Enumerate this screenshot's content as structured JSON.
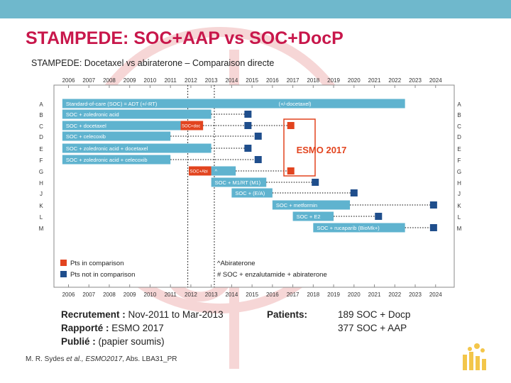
{
  "header": {
    "title": "STAMPEDE: SOC+AAP vs SOC+DocP",
    "subtitle": "STAMPEDE: Docetaxel vs abiraterone – Comparaison directe"
  },
  "chart_data": {
    "type": "gantt",
    "years": [
      "2006",
      "2007",
      "2008",
      "2009",
      "2010",
      "2011",
      "2012",
      "2013",
      "2014",
      "2015",
      "2016",
      "2017",
      "2018",
      "2019",
      "2020",
      "2021",
      "2022",
      "2023",
      "2024"
    ],
    "row_letters": [
      "A",
      "B",
      "C",
      "D",
      "E",
      "F",
      "G",
      "H",
      "J",
      "K",
      "L",
      "M"
    ],
    "arms": [
      {
        "row": "A",
        "label": "Standard-of-care (SOC) = ADT (+/-RT)",
        "start": 2005.7,
        "end": 2022.5,
        "label2": "(+/-docetaxel)"
      },
      {
        "row": "B",
        "label": "SOC + zoledronic acid",
        "start": 2005.7,
        "end": 2013.0,
        "marker": "not",
        "marker_at": 2014.8
      },
      {
        "row": "C",
        "label": "SOC + docetaxel",
        "start": 2005.7,
        "end": 2011.5,
        "highlight": "SOC+doc",
        "hl_start": 2011.5,
        "hl_end": 2012.6,
        "marker": "not",
        "marker_at": 2014.8,
        "marker2": "pts",
        "marker2_at": 2016.9
      },
      {
        "row": "D",
        "label": "SOC + celecoxib",
        "start": 2005.7,
        "end": 2011.0,
        "marker": "not",
        "marker_at": 2015.3
      },
      {
        "row": "E",
        "label": "SOC + zoledronic acid + docetaxel",
        "start": 2005.7,
        "end": 2013.0,
        "marker": "not",
        "marker_at": 2014.8
      },
      {
        "row": "F",
        "label": "SOC + zoledronic acid + celecoxib",
        "start": 2005.7,
        "end": 2011.0,
        "marker": "not",
        "marker_at": 2015.3
      },
      {
        "row": "G",
        "label": "^",
        "start": 2013.0,
        "end": 2014.2,
        "highlight": "SOC+Abi",
        "hl_start": 2011.9,
        "hl_end": 2013.0,
        "marker": "pts",
        "marker_at": 2016.9
      },
      {
        "row": "H",
        "label": "SOC + M1/RT (M1)",
        "start": 2013.0,
        "end": 2015.7,
        "marker": "not",
        "marker_at": 2018.1
      },
      {
        "row": "J",
        "label": "SOC + (E/A)",
        "start": 2014.0,
        "end": 2016.0,
        "marker": "not",
        "marker_at": 2020.0
      },
      {
        "row": "K",
        "label": "SOC + metformin",
        "start": 2016.0,
        "end": 2019.8,
        "marker": "not",
        "marker_at": 2023.9
      },
      {
        "row": "L",
        "label": "SOC + E2",
        "start": 2017.0,
        "end": 2019.0,
        "marker": "not",
        "marker_at": 2021.2
      },
      {
        "row": "M",
        "label": "SOC + rucaparib (BioMk+)",
        "start": 2018.0,
        "end": 2022.5,
        "marker": "not",
        "marker_at": 2023.9
      }
    ],
    "esmo_label": "ESMO 2017",
    "legend": [
      {
        "label": "Pts in comparison",
        "color": "#e2441f"
      },
      {
        "label": "Pts not in comparison",
        "color": "#1f4e8c"
      }
    ],
    "notes": [
      "^Abiraterone",
      "# SOC + enzalutamide + abiraterone"
    ],
    "colors": {
      "bar": "#5fb3cf",
      "highlight": "#e2441f",
      "marker_not": "#1f4e8c",
      "esmo": "#e2441f"
    }
  },
  "info": {
    "recruit_label": "Recrutement :",
    "recruit_value": "Nov-2011 to Mar-2013",
    "reported_label": "Rapporté :",
    "reported_value": "ESMO 2017",
    "published_label": "Publié :",
    "published_value": "(papier soumis)",
    "patients_label": "Patients:",
    "patients_1": "189 SOC + Docp",
    "patients_2": "377 SOC + AAP"
  },
  "reference": {
    "authors": "M. R. Sydes ",
    "etal": "et al., ESMO2017",
    "abs": ", Abs. LBA31_PR"
  }
}
